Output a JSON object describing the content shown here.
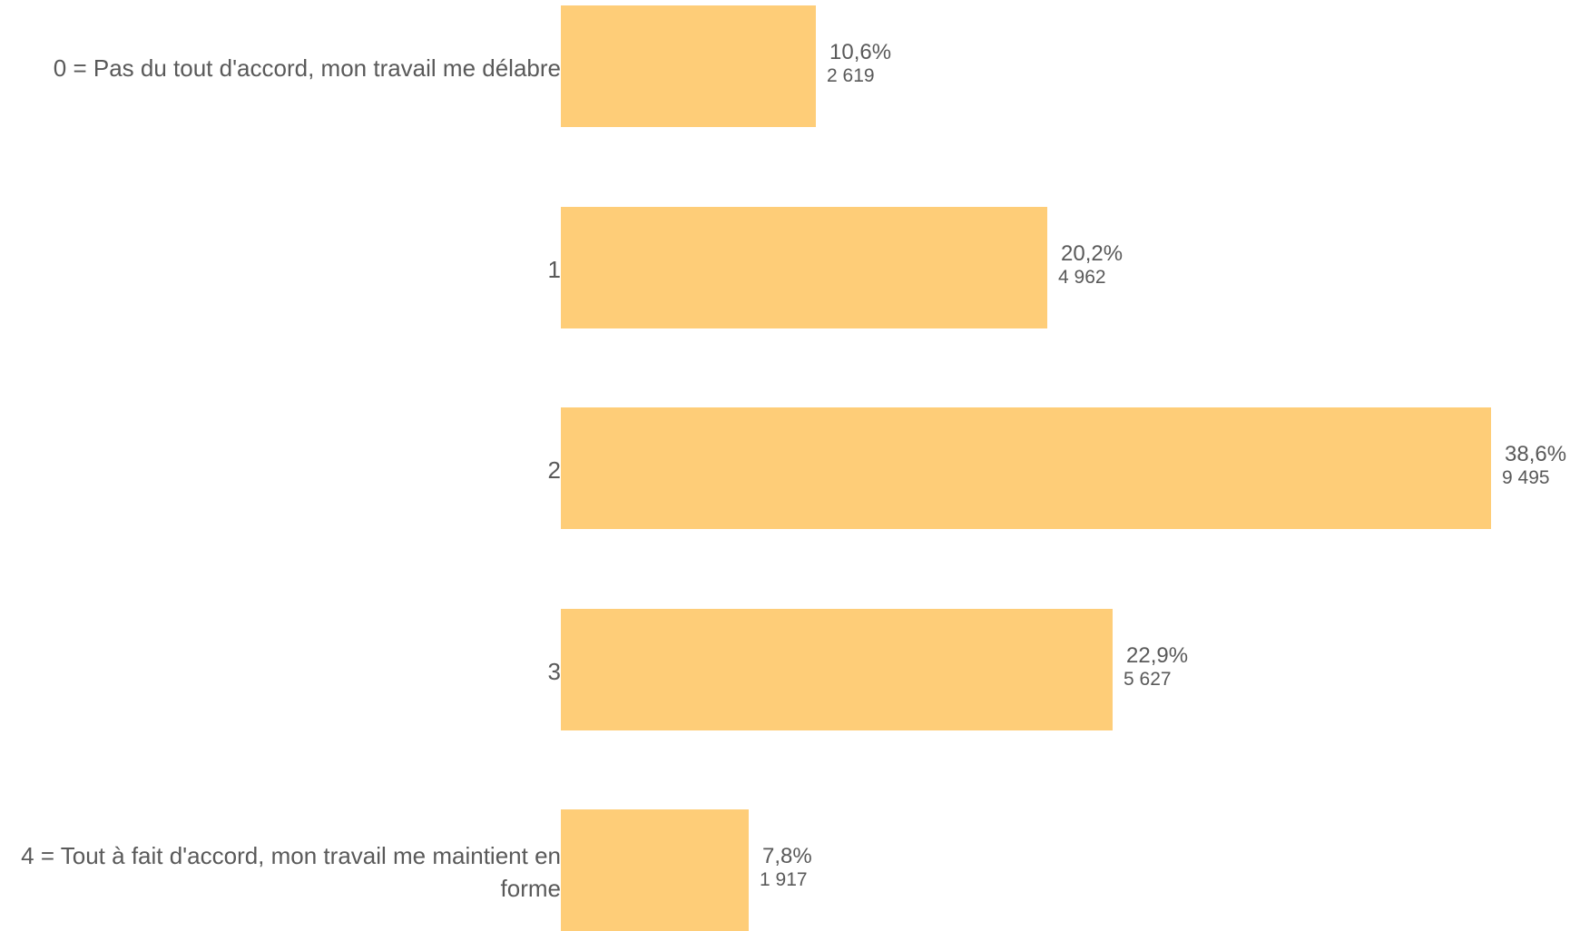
{
  "chart_data": {
    "type": "bar",
    "orientation": "horizontal",
    "categories": [
      "0 = Pas du tout d'accord, mon travail me délabre",
      "1",
      "2",
      "3",
      "4 = Tout à fait d'accord, mon travail me maintient en forme"
    ],
    "values": [
      10.6,
      20.2,
      38.6,
      22.9,
      7.8
    ],
    "value_labels": [
      "10,6%",
      "20,2%",
      "38,6%",
      "22,9%",
      "7,8%"
    ],
    "counts": [
      2619,
      4962,
      9495,
      5627,
      1917
    ],
    "count_labels": [
      "2 619",
      "4 962",
      "9 495",
      "5 627",
      "1 917"
    ],
    "unit": "%",
    "xlim": [
      0,
      38.6
    ],
    "grid": false,
    "legend": "none",
    "colors": {
      "bar": "#FECD78",
      "text": "#595959"
    }
  }
}
